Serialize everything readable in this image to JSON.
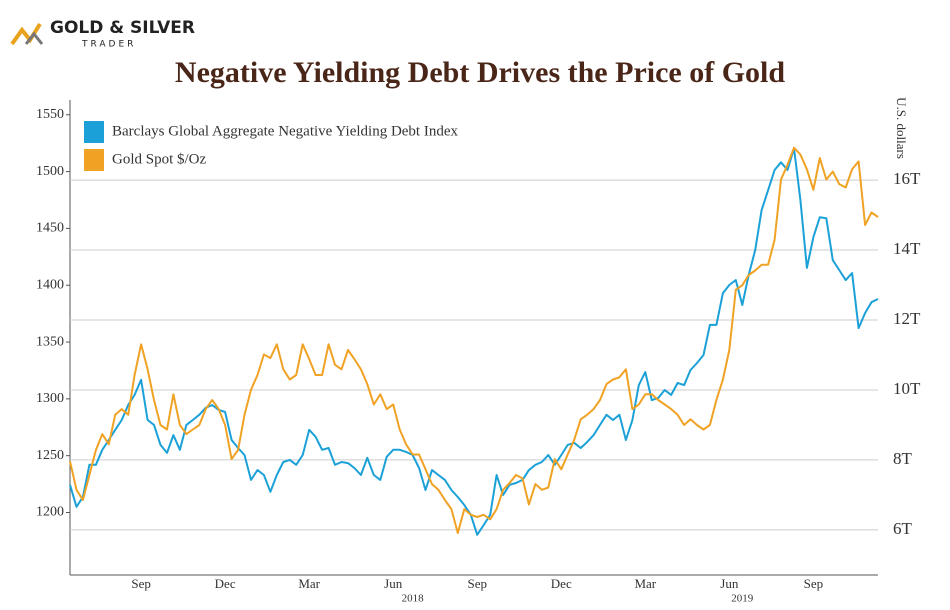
{
  "brand": {
    "name": "GOLD & SILVER",
    "tagline": "TRADER"
  },
  "chart_data": {
    "type": "line",
    "title": "Negative Yielding Debt Drives the Price of Gold",
    "y2_label": "U.S. dollars",
    "categories": [
      null,
      null,
      null,
      null,
      null,
      null,
      null,
      null,
      null,
      null,
      null,
      "Sep",
      null,
      null,
      null,
      null,
      null,
      null,
      null,
      null,
      null,
      null,
      null,
      null,
      "Dec",
      null,
      null,
      null,
      null,
      null,
      null,
      null,
      null,
      null,
      null,
      null,
      null,
      "Mar",
      null,
      null,
      null,
      null,
      null,
      null,
      null,
      null,
      null,
      null,
      null,
      null,
      "Jun",
      null,
      null,
      null,
      null,
      null,
      null,
      null,
      null,
      null,
      null,
      null,
      null,
      "Sep",
      null,
      null,
      null,
      null,
      null,
      null,
      null,
      null,
      null,
      null,
      null,
      null,
      "Dec",
      null,
      null,
      null,
      null,
      null,
      null,
      null,
      null,
      null,
      null,
      null,
      null,
      "Mar",
      null,
      null,
      null,
      null,
      null,
      null,
      null,
      null,
      null,
      null,
      null,
      null,
      "Jun",
      null,
      null,
      null,
      null,
      null,
      null,
      null,
      null,
      null,
      null,
      null,
      null,
      "Sep",
      null,
      null,
      null,
      null,
      null,
      null,
      null,
      null,
      null,
      null
    ],
    "category_groups": [
      null,
      null,
      null,
      null,
      null,
      null,
      null,
      null,
      null,
      null,
      null,
      null,
      null,
      null,
      null,
      null,
      null,
      null,
      null,
      null,
      null,
      null,
      null,
      null,
      null,
      null,
      null,
      null,
      null,
      null,
      null,
      null,
      null,
      null,
      null,
      null,
      null,
      null,
      null,
      null,
      null,
      null,
      null,
      null,
      null,
      null,
      null,
      null,
      null,
      null,
      null,
      null,
      null,
      "2018",
      null,
      null,
      null,
      null,
      null,
      null,
      null,
      null,
      null,
      null,
      null,
      null,
      null,
      null,
      null,
      null,
      null,
      null,
      null,
      null,
      null,
      null,
      null,
      null,
      null,
      null,
      null,
      null,
      null,
      null,
      null,
      null,
      null,
      null,
      null,
      null,
      null,
      null,
      null,
      null,
      null,
      null,
      null,
      null,
      null,
      null,
      null,
      null,
      null,
      null,
      "2019",
      null,
      null,
      null,
      null,
      null,
      null,
      null,
      null,
      null,
      null,
      null,
      null,
      null,
      null,
      null,
      null,
      null,
      null,
      null,
      null,
      null
    ],
    "series": [
      {
        "name": "Barclays Global Aggregate Negative Yielding Debt Index",
        "color": "#1ba1d8",
        "axis": "y2",
        "values": [
          7.29,
          6.66,
          6.94,
          7.86,
          7.86,
          8.29,
          8.57,
          8.86,
          9.14,
          9.57,
          9.86,
          10.29,
          9.14,
          9.0,
          8.43,
          8.2,
          8.71,
          8.29,
          9.0,
          9.14,
          9.29,
          9.49,
          9.57,
          9.43,
          9.37,
          8.57,
          8.34,
          8.14,
          7.43,
          7.71,
          7.57,
          7.09,
          7.57,
          7.94,
          8.0,
          7.86,
          8.14,
          8.86,
          8.66,
          8.29,
          8.34,
          7.86,
          7.94,
          7.91,
          7.77,
          7.57,
          8.06,
          7.57,
          7.43,
          8.09,
          8.29,
          8.29,
          8.23,
          8.14,
          7.77,
          7.14,
          7.71,
          7.57,
          7.43,
          7.14,
          6.94,
          6.71,
          6.43,
          5.86,
          6.14,
          6.43,
          7.57,
          7.0,
          7.29,
          7.34,
          7.43,
          7.71,
          7.86,
          7.94,
          8.14,
          7.86,
          8.14,
          8.43,
          8.49,
          8.34,
          8.51,
          8.71,
          9.0,
          9.29,
          9.14,
          9.29,
          8.57,
          9.14,
          10.14,
          10.51,
          9.71,
          9.77,
          10.0,
          9.86,
          10.2,
          10.14,
          10.57,
          10.77,
          11.0,
          11.86,
          11.86,
          12.77,
          13.0,
          13.14,
          12.43,
          13.29,
          14.0,
          15.14,
          15.71,
          16.29,
          16.51,
          16.29,
          16.91,
          15.43,
          13.49,
          14.37,
          14.94,
          14.91,
          13.71,
          13.43,
          13.14,
          13.34,
          11.77,
          12.2,
          12.51,
          12.6
        ]
      },
      {
        "name": "Gold Spot $/Oz",
        "color": "#f0a224",
        "values": [
          1245,
          1220,
          1211,
          1233,
          1255,
          1269,
          1260,
          1286,
          1291,
          1286,
          1321,
          1348,
          1326,
          1299,
          1277,
          1273,
          1304,
          1277,
          1269,
          1273,
          1277,
          1291,
          1299,
          1291,
          1277,
          1247,
          1255,
          1286,
          1308,
          1321,
          1339,
          1336,
          1348,
          1326,
          1317,
          1321,
          1348,
          1335,
          1321,
          1321,
          1348,
          1330,
          1326,
          1343,
          1335,
          1326,
          1313,
          1295,
          1304,
          1291,
          1295,
          1273,
          1260,
          1251,
          1251,
          1238,
          1225,
          1220,
          1211,
          1203,
          1182,
          1203,
          1198,
          1196,
          1198,
          1194,
          1203,
          1220,
          1226,
          1233,
          1230,
          1207,
          1225,
          1220,
          1222,
          1247,
          1238,
          1251,
          1264,
          1282,
          1286,
          1291,
          1299,
          1313,
          1317,
          1319,
          1326,
          1291,
          1295,
          1304,
          1304,
          1299,
          1295,
          1291,
          1286,
          1277,
          1282,
          1277,
          1273,
          1277,
          1299,
          1317,
          1343,
          1396,
          1400,
          1409,
          1413,
          1418,
          1418,
          1440,
          1493,
          1506,
          1521,
          1515,
          1502,
          1484,
          1512,
          1493,
          1500,
          1489,
          1486,
          1502,
          1509,
          1453,
          1464,
          1460
        ]
      }
    ],
    "ylim": [
      1145,
      1563
    ],
    "yticks": [
      1200,
      1250,
      1300,
      1350,
      1400,
      1450,
      1500,
      1550
    ],
    "y2lim": [
      4.71,
      18.29
    ],
    "y2ticks": [
      {
        "value": 6,
        "label": "6T"
      },
      {
        "value": 8,
        "label": "8T"
      },
      {
        "value": 10,
        "label": "10T"
      },
      {
        "value": 12,
        "label": "12T"
      },
      {
        "value": 14,
        "label": "14T"
      },
      {
        "value": 16,
        "label": "16T"
      }
    ],
    "grid": true
  }
}
